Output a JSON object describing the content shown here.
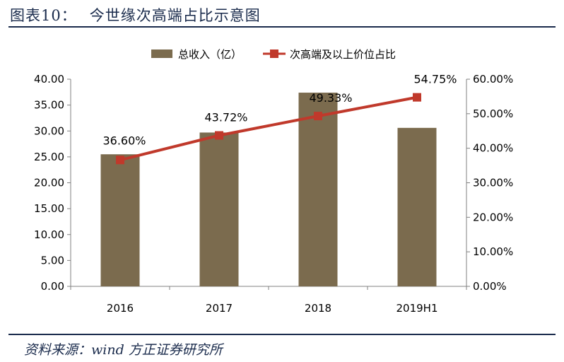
{
  "figure": {
    "label": "图表10：",
    "title": "今世缘次高端占比示意图",
    "source": "资料来源：wind 方正证券研究所"
  },
  "colors": {
    "bar": "#7b6b4e",
    "line": "#c0392b",
    "text": "#1a2b4c",
    "axis": "#808080"
  },
  "chart_data": {
    "type": "bar",
    "categories": [
      "2016",
      "2017",
      "2018",
      "2019H1"
    ],
    "series": [
      {
        "name": "总收入（亿）",
        "type": "bar",
        "axis": "left",
        "values": [
          25.5,
          29.7,
          37.4,
          30.6
        ]
      },
      {
        "name": "次高端及以上价位占比",
        "type": "line",
        "axis": "right",
        "values": [
          36.6,
          43.72,
          49.33,
          54.75
        ],
        "labels": [
          "36.60%",
          "43.72%",
          "49.33%",
          "54.75%"
        ]
      }
    ],
    "y_left": {
      "min": 0,
      "max": 40,
      "step": 5,
      "ticks": [
        "0.00",
        "5.00",
        "10.00",
        "15.00",
        "20.00",
        "25.00",
        "30.00",
        "35.00",
        "40.00"
      ]
    },
    "y_right": {
      "min": 0,
      "max": 60,
      "step": 10,
      "ticks": [
        "0.00%",
        "10.00%",
        "20.00%",
        "30.00%",
        "40.00%",
        "50.00%",
        "60.00%"
      ]
    },
    "legend_position": "top-center",
    "grid": false
  }
}
